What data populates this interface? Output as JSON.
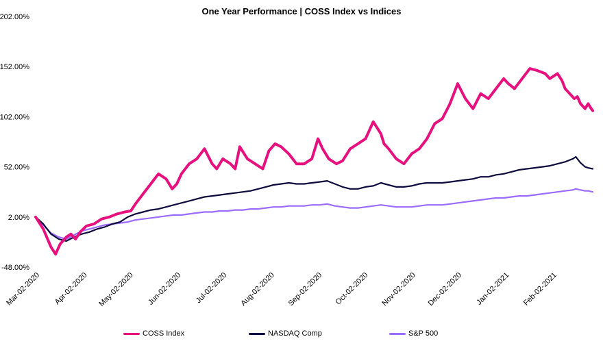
{
  "chart_data": {
    "type": "line",
    "title": "One Year Performance | COSS Index vs Indices",
    "xlabel": "",
    "ylabel": "",
    "ylim": [
      -48,
      202
    ],
    "yticks": [
      202,
      152,
      102,
      52,
      2,
      -48
    ],
    "ytick_labels": [
      "202.00%",
      "152.00%",
      "102.00%",
      "52.00%",
      "2.00%",
      "-48.00%"
    ],
    "xlim": [
      0,
      363
    ],
    "xtick_positions": [
      0,
      31,
      61,
      92,
      122,
      153,
      184,
      214,
      245,
      275,
      306,
      337
    ],
    "xtick_labels": [
      "Mar-02-2020",
      "Apr-02-2020",
      "May-02-2020",
      "Jun-02-2020",
      "Jul-02-2020",
      "Aug-02-2020",
      "Sep-02-2020",
      "Oct-02-2020",
      "Nov-02-2020",
      "Dec-02-2020",
      "Jan-02-2021",
      "Feb-02-2021"
    ],
    "grid": false,
    "legend_position": "bottom",
    "series": [
      {
        "name": "COSS Index",
        "color": "#e6117f",
        "x": [
          0,
          5,
          10,
          13,
          16,
          20,
          23,
          26,
          29,
          33,
          38,
          43,
          48,
          53,
          58,
          62,
          65,
          70,
          75,
          80,
          85,
          89,
          92,
          95,
          100,
          105,
          110,
          115,
          118,
          122,
          127,
          130,
          133,
          138,
          143,
          148,
          152,
          156,
          160,
          165,
          170,
          175,
          180,
          184,
          187,
          191,
          196,
          200,
          205,
          210,
          215,
          220,
          225,
          227,
          230,
          235,
          240,
          245,
          250,
          255,
          260,
          265,
          270,
          275,
          280,
          285,
          290,
          295,
          300,
          305,
          308,
          312,
          317,
          322,
          327,
          332,
          335,
          340,
          343,
          345,
          348,
          351,
          353,
          355,
          358,
          360,
          362,
          363
        ],
        "values": [
          2,
          -10,
          -28,
          -35,
          -25,
          -18,
          -15,
          -20,
          -13,
          -7,
          -5,
          0,
          2,
          5,
          7,
          8,
          15,
          25,
          35,
          45,
          40,
          30,
          35,
          45,
          55,
          60,
          70,
          55,
          50,
          60,
          55,
          50,
          72,
          60,
          55,
          50,
          68,
          75,
          72,
          65,
          55,
          55,
          60,
          80,
          70,
          60,
          55,
          58,
          70,
          75,
          80,
          97,
          85,
          75,
          70,
          60,
          55,
          65,
          70,
          80,
          95,
          100,
          115,
          135,
          120,
          110,
          125,
          120,
          130,
          140,
          135,
          130,
          140,
          150,
          148,
          145,
          140,
          145,
          138,
          130,
          125,
          120,
          122,
          115,
          110,
          115,
          110,
          108
        ]
      },
      {
        "name": "NASDAQ Comp",
        "color": "#0d0a3d",
        "x": [
          0,
          5,
          10,
          15,
          20,
          25,
          30,
          35,
          40,
          45,
          50,
          55,
          60,
          65,
          70,
          75,
          80,
          85,
          90,
          95,
          100,
          105,
          110,
          115,
          120,
          125,
          130,
          135,
          140,
          145,
          150,
          155,
          160,
          165,
          170,
          175,
          180,
          185,
          190,
          195,
          200,
          205,
          210,
          215,
          220,
          225,
          230,
          235,
          240,
          245,
          250,
          255,
          260,
          265,
          270,
          275,
          280,
          285,
          290,
          295,
          300,
          305,
          310,
          315,
          320,
          325,
          330,
          335,
          340,
          345,
          350,
          352,
          355,
          358,
          360,
          363
        ],
        "values": [
          2,
          -5,
          -15,
          -20,
          -22,
          -18,
          -15,
          -13,
          -10,
          -8,
          -5,
          -3,
          2,
          5,
          7,
          9,
          10,
          12,
          14,
          16,
          18,
          20,
          22,
          23,
          24,
          25,
          26,
          27,
          28,
          30,
          32,
          34,
          35,
          36,
          35,
          35,
          36,
          37,
          38,
          35,
          32,
          30,
          30,
          32,
          33,
          36,
          34,
          32,
          32,
          33,
          35,
          36,
          36,
          36,
          37,
          38,
          39,
          40,
          42,
          42,
          44,
          45,
          47,
          49,
          50,
          51,
          52,
          53,
          55,
          57,
          60,
          62,
          56,
          52,
          51,
          50
        ]
      },
      {
        "name": "S&P 500",
        "color": "#9b6bff",
        "x": [
          0,
          5,
          10,
          15,
          20,
          25,
          30,
          35,
          40,
          45,
          50,
          55,
          60,
          65,
          70,
          75,
          80,
          85,
          90,
          95,
          100,
          105,
          110,
          115,
          120,
          125,
          130,
          135,
          140,
          145,
          150,
          155,
          160,
          165,
          170,
          175,
          180,
          185,
          190,
          195,
          200,
          205,
          210,
          215,
          220,
          225,
          230,
          235,
          240,
          245,
          250,
          255,
          260,
          265,
          270,
          275,
          280,
          285,
          290,
          295,
          300,
          305,
          310,
          315,
          320,
          325,
          330,
          335,
          340,
          345,
          350,
          352,
          355,
          358,
          360,
          363
        ],
        "values": [
          2,
          -6,
          -14,
          -18,
          -20,
          -16,
          -12,
          -10,
          -8,
          -6,
          -5,
          -4,
          -3,
          -1,
          0,
          1,
          2,
          3,
          4,
          4,
          5,
          6,
          7,
          7,
          8,
          8,
          9,
          9,
          10,
          10,
          11,
          12,
          12,
          13,
          13,
          13,
          14,
          14,
          15,
          13,
          12,
          11,
          11,
          12,
          13,
          14,
          13,
          12,
          12,
          12,
          13,
          14,
          14,
          14,
          15,
          16,
          17,
          18,
          19,
          20,
          21,
          21,
          22,
          23,
          23,
          24,
          25,
          26,
          27,
          28,
          29,
          30,
          29,
          28,
          28,
          27
        ]
      }
    ]
  }
}
